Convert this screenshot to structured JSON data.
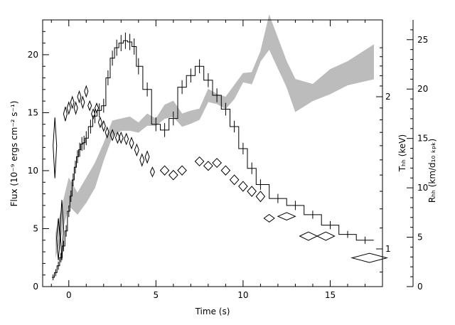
{
  "chart_data": {
    "type": "line",
    "xlabel": "Time (s)",
    "left_ylabel": "Flux (10⁻⁹ ergs cm⁻² s⁻¹)",
    "right_ylabel_temperature": "Tₕₕ (keV)",
    "right_ylabel_radius": "Rₕₕ (km/d₁₀ ₖₚₖ)",
    "xlim": [
      -1.5,
      18
    ],
    "left_ylim": [
      0,
      23
    ],
    "radius_ylim": [
      0,
      27
    ],
    "temperature_axis": "log",
    "x_ticks": [
      0,
      5,
      10,
      15
    ],
    "x_tick_labels": [
      "0",
      "5",
      "10",
      "15"
    ],
    "left_ticks": [
      0,
      5,
      10,
      15,
      20
    ],
    "left_tick_labels": [
      "0",
      "5",
      "10",
      "15",
      "20"
    ],
    "radius_ticks": [
      0,
      5,
      10,
      15,
      20,
      25
    ],
    "radius_tick_labels": [
      "0",
      "5",
      "10",
      "15",
      "20",
      "25"
    ],
    "temperature_ticks": [
      1,
      2
    ],
    "temperature_tick_labels": [
      "1",
      "2"
    ],
    "series": [
      {
        "role": "flux",
        "style": "histogram-with-errors",
        "x": [
          -0.9,
          -0.75,
          -0.6,
          -0.45,
          -0.3,
          -0.15,
          0.0,
          0.125,
          0.25,
          0.375,
          0.5,
          0.625,
          0.75,
          0.875,
          1.0,
          1.25,
          1.5,
          1.75,
          2.0,
          2.25,
          2.5,
          2.75,
          3.0,
          3.25,
          3.5,
          3.75,
          4.0,
          4.5,
          5.0,
          5.5,
          6.0,
          6.5,
          7.0,
          7.5,
          8.0,
          8.5,
          9.0,
          9.5,
          10.0,
          10.5,
          11.0,
          12.0,
          13.0,
          14.0,
          15.0,
          16.0,
          17.0
        ],
        "y": [
          0.8,
          1.2,
          1.8,
          2.5,
          3.5,
          4.8,
          6.5,
          7.8,
          9.2,
          10.3,
          11.2,
          11.8,
          12.3,
          12.4,
          12.8,
          13.8,
          14.7,
          15.2,
          15.6,
          18.0,
          19.7,
          20.6,
          21.0,
          21.2,
          21.1,
          20.7,
          19.0,
          17.0,
          14.0,
          13.5,
          14.5,
          17.2,
          18.2,
          19.0,
          17.8,
          16.5,
          15.3,
          13.8,
          11.9,
          10.2,
          8.8,
          7.6,
          7.0,
          6.2,
          5.3,
          4.5,
          4.0
        ],
        "err": [
          0.25,
          0.3,
          0.35,
          0.4,
          0.45,
          0.5,
          0.5,
          0.5,
          0.55,
          0.55,
          0.55,
          0.6,
          0.6,
          0.6,
          0.6,
          0.6,
          0.6,
          0.6,
          0.6,
          0.65,
          0.65,
          0.7,
          0.7,
          0.7,
          0.7,
          0.7,
          0.7,
          0.6,
          0.6,
          0.6,
          0.6,
          0.6,
          0.6,
          0.6,
          0.6,
          0.6,
          0.55,
          0.5,
          0.5,
          0.5,
          0.45,
          0.4,
          0.4,
          0.35,
          0.35,
          0.3,
          0.3
        ]
      },
      {
        "role": "temperature",
        "style": "diamonds",
        "x": [
          -0.8,
          -0.6,
          -0.4,
          -0.2,
          0.0,
          0.2,
          0.4,
          0.6,
          0.8,
          1.0,
          1.2,
          1.4,
          1.6,
          1.8,
          2.0,
          2.2,
          2.5,
          2.8,
          3.0,
          3.3,
          3.6,
          3.9,
          4.2,
          4.5,
          4.8,
          5.5,
          6.0,
          6.5,
          7.5,
          8.0,
          8.5,
          9.0,
          9.5,
          10.0,
          10.5,
          11.0,
          11.5,
          12.5,
          13.75,
          14.75,
          17.25
        ],
        "y": [
          1.6,
          1.05,
          1.1,
          1.85,
          1.9,
          1.95,
          1.9,
          2.0,
          1.95,
          2.05,
          1.92,
          1.85,
          1.9,
          1.78,
          1.75,
          1.7,
          1.68,
          1.66,
          1.66,
          1.65,
          1.62,
          1.57,
          1.5,
          1.52,
          1.42,
          1.43,
          1.4,
          1.43,
          1.49,
          1.46,
          1.48,
          1.43,
          1.37,
          1.33,
          1.3,
          1.27,
          1.15,
          1.16,
          1.06,
          1.06,
          0.96
        ],
        "xerr": [
          0.08,
          0.08,
          0.08,
          0.08,
          0.08,
          0.08,
          0.08,
          0.08,
          0.08,
          0.08,
          0.08,
          0.08,
          0.08,
          0.08,
          0.08,
          0.1,
          0.12,
          0.12,
          0.12,
          0.12,
          0.12,
          0.12,
          0.12,
          0.12,
          0.12,
          0.25,
          0.25,
          0.25,
          0.25,
          0.25,
          0.25,
          0.25,
          0.25,
          0.25,
          0.25,
          0.25,
          0.3,
          0.5,
          0.5,
          0.5,
          1.0
        ],
        "yerr": [
          0.22,
          0.1,
          0.15,
          0.06,
          0.05,
          0.05,
          0.05,
          0.05,
          0.05,
          0.05,
          0.04,
          0.04,
          0.04,
          0.04,
          0.04,
          0.04,
          0.04,
          0.04,
          0.04,
          0.04,
          0.04,
          0.04,
          0.04,
          0.04,
          0.03,
          0.03,
          0.03,
          0.03,
          0.03,
          0.03,
          0.03,
          0.03,
          0.03,
          0.03,
          0.03,
          0.03,
          0.02,
          0.02,
          0.02,
          0.02,
          0.02
        ]
      },
      {
        "role": "radius",
        "style": "band",
        "x": [
          -0.75,
          0.0,
          0.5,
          1.0,
          1.5,
          2.0,
          2.5,
          3.0,
          3.5,
          4.0,
          4.5,
          5.0,
          5.5,
          6.0,
          6.5,
          7.0,
          7.5,
          8.0,
          8.5,
          9.0,
          9.5,
          10.0,
          10.5,
          11.0,
          11.5,
          12.5,
          13.0,
          14.0,
          15.0,
          16.0,
          17.5
        ],
        "low": [
          3.0,
          8.2,
          7.3,
          8.5,
          10.0,
          12.8,
          15.2,
          15.8,
          15.8,
          15.6,
          16.3,
          16.3,
          17.0,
          17.2,
          16.2,
          16.5,
          16.9,
          18.7,
          18.5,
          18.0,
          19.0,
          20.7,
          20.5,
          22.8,
          24.0,
          20.2,
          17.7,
          18.8,
          19.5,
          20.4,
          21.0
        ],
        "high": [
          5.5,
          11.0,
          9.5,
          11.0,
          12.5,
          14.5,
          16.8,
          17.0,
          17.2,
          16.6,
          17.5,
          17.0,
          18.4,
          18.8,
          17.5,
          17.8,
          18.0,
          20.0,
          19.5,
          19.2,
          20.4,
          21.6,
          21.7,
          23.8,
          27.5,
          22.8,
          21.0,
          20.5,
          22.0,
          22.8,
          24.5
        ]
      }
    ]
  }
}
